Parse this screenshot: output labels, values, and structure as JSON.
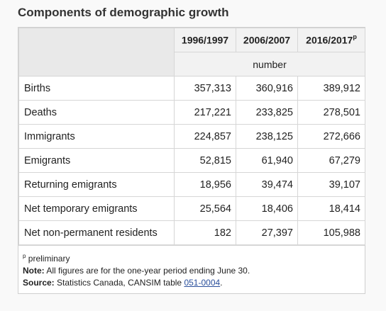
{
  "title": "Components of demographic growth",
  "table": {
    "columns": [
      {
        "label": "1996/1997",
        "superscript": ""
      },
      {
        "label": "2006/2007",
        "superscript": ""
      },
      {
        "label": "2016/2017",
        "superscript": "p"
      }
    ],
    "unit": "number",
    "rows": [
      {
        "label": "Births",
        "values": [
          "357,313",
          "360,916",
          "389,912"
        ]
      },
      {
        "label": "Deaths",
        "values": [
          "217,221",
          "233,825",
          "278,501"
        ]
      },
      {
        "label": "Immigrants",
        "values": [
          "224,857",
          "238,125",
          "272,666"
        ]
      },
      {
        "label": "Emigrants",
        "values": [
          "52,815",
          "61,940",
          "67,279"
        ]
      },
      {
        "label": "Returning emigrants",
        "values": [
          "18,956",
          "39,474",
          "39,107"
        ]
      },
      {
        "label": "Net temporary emigrants",
        "values": [
          "25,564",
          "18,406",
          "18,414"
        ]
      },
      {
        "label": "Net non-permanent residents",
        "values": [
          "182",
          "27,397",
          "105,988"
        ]
      }
    ]
  },
  "notes": {
    "preliminary_marker": "p",
    "preliminary_text": "preliminary",
    "note_label": "Note:",
    "note_text": "All figures are for the one-year period ending June 30.",
    "source_label": "Source:",
    "source_text": "Statistics Canada, CANSIM table",
    "source_link": "051-0004",
    "source_end": "."
  }
}
